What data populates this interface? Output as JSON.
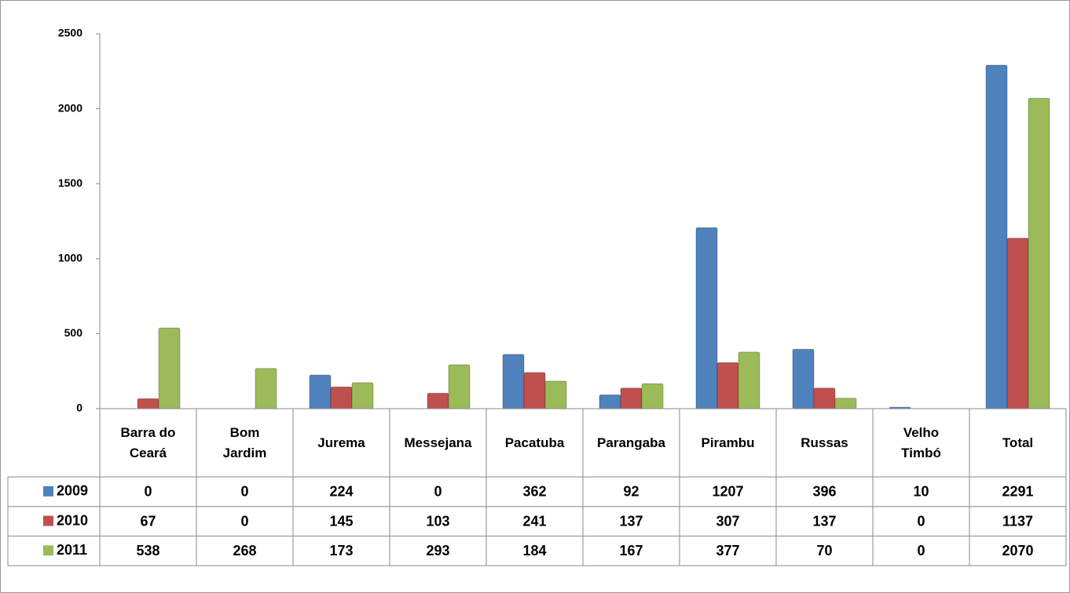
{
  "chart_data": {
    "type": "bar",
    "categories": [
      "Barra do Ceará",
      "Bom Jardim",
      "Jurema",
      "Messejana",
      "Pacatuba",
      "Parangaba",
      "Pirambu",
      "Russas",
      "Velho Timbó",
      "Total"
    ],
    "series": [
      {
        "name": "2009",
        "color": "#4f81bd",
        "values": [
          0,
          0,
          224,
          0,
          362,
          92,
          1207,
          396,
          10,
          2291
        ]
      },
      {
        "name": "2010",
        "color": "#c0504d",
        "values": [
          67,
          0,
          145,
          103,
          241,
          137,
          307,
          137,
          0,
          1137
        ]
      },
      {
        "name": "2011",
        "color": "#9bbb59",
        "values": [
          538,
          268,
          173,
          293,
          184,
          167,
          377,
          70,
          0,
          2070
        ]
      }
    ],
    "ylim": [
      0,
      2500
    ],
    "yticks": [
      0,
      500,
      1000,
      1500,
      2000,
      2500
    ],
    "grid": false,
    "data_table": true
  }
}
